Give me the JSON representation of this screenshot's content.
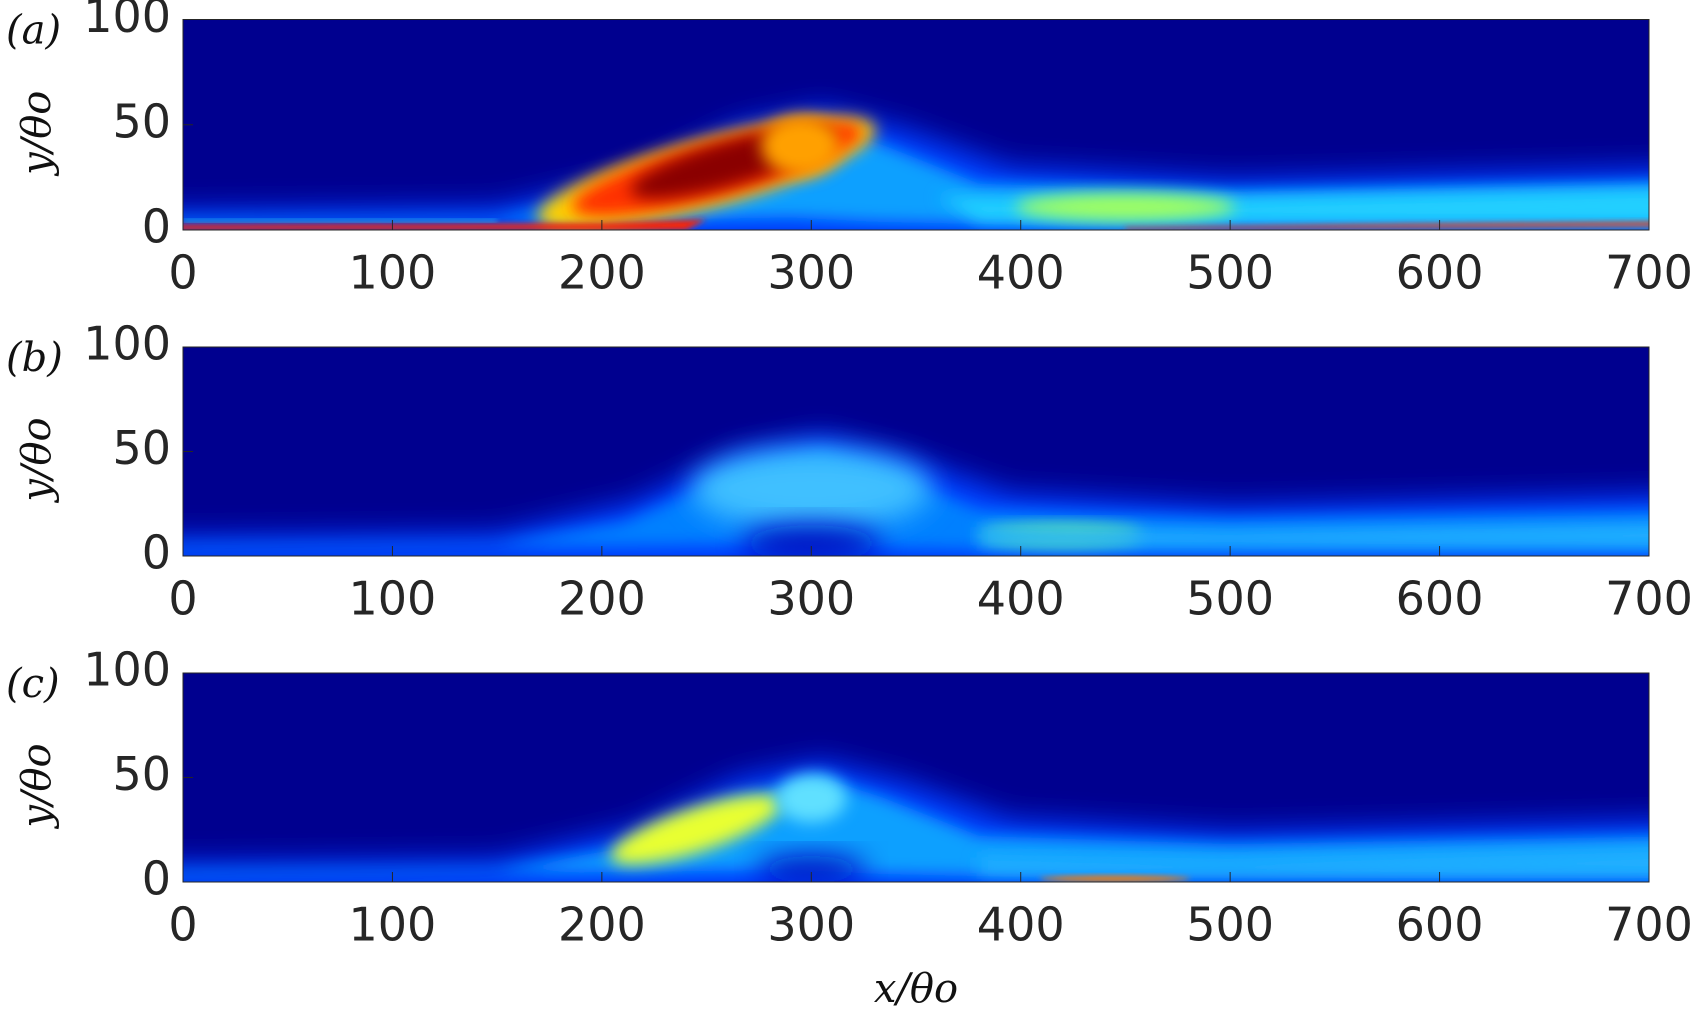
{
  "chart_data": [
    {
      "type": "heatmap",
      "panel_label": "(a)",
      "ylabel": "y/θo",
      "xlim": [
        0,
        700
      ],
      "xticks": [
        0,
        100,
        200,
        300,
        400,
        500,
        600,
        700
      ],
      "ylim": [
        0,
        100
      ],
      "yticks": [
        0,
        50,
        100
      ],
      "colormap": "jet"
    },
    {
      "type": "heatmap",
      "panel_label": "(b)",
      "ylabel": "y/θo",
      "xlim": [
        0,
        700
      ],
      "xticks": [
        0,
        100,
        200,
        300,
        400,
        500,
        600,
        700
      ],
      "ylim": [
        0,
        100
      ],
      "yticks": [
        0,
        50,
        100
      ],
      "colormap": "jet"
    },
    {
      "type": "heatmap",
      "panel_label": "(c)",
      "ylabel": "y/θo",
      "xlabel": "x/θo",
      "xlim": [
        0,
        700
      ],
      "xticks": [
        0,
        100,
        200,
        300,
        400,
        500,
        600,
        700
      ],
      "ylim": [
        0,
        100
      ],
      "yticks": [
        0,
        50,
        100
      ],
      "colormap": "jet"
    }
  ]
}
